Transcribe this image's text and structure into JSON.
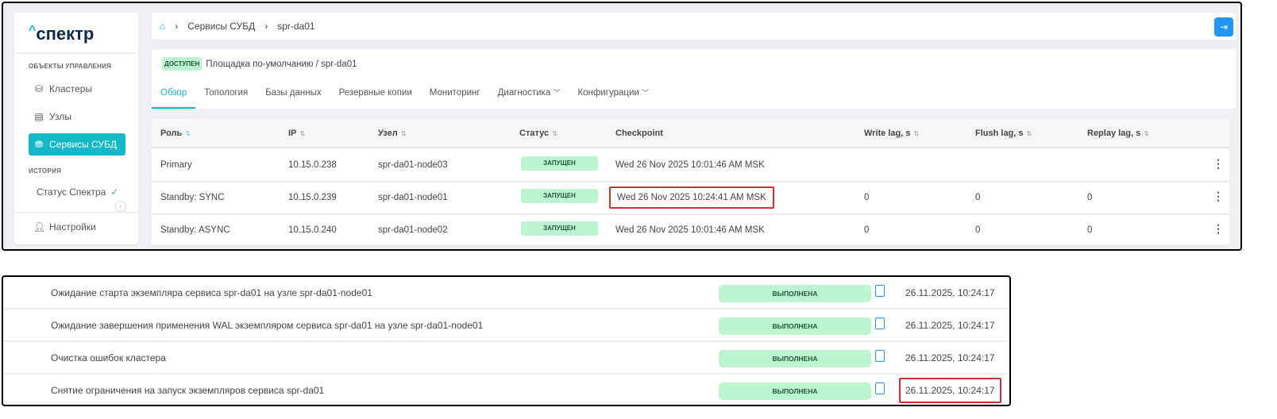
{
  "sidebar": {
    "logo": "спектр",
    "section_objects": "ОБЪЕКТЫ УПРАВЛЕНИЯ",
    "items": [
      {
        "label": "Кластеры",
        "icon": "cluster-icon"
      },
      {
        "label": "Узлы",
        "icon": "server-icon"
      },
      {
        "label": "Сервисы СУБД",
        "icon": "database-icon",
        "active": true
      }
    ],
    "section_history": "ИСТОРИЯ",
    "status": "Статус Спектра",
    "settings": "Настройки"
  },
  "breadcrumb": {
    "items": [
      "Сервисы СУБД",
      "spr-da01"
    ]
  },
  "header": {
    "status_badge": "ДОСТУПЕН",
    "path": "Площадка по-умолчанию /  spr-da01"
  },
  "tabs": [
    "Обзор",
    "Топология",
    "Базы данных",
    "Резервные копии",
    "Мониторинг",
    "Диагностика",
    "Конфигурации"
  ],
  "table": {
    "columns": [
      "Роль",
      "IP",
      "Узел",
      "Статус",
      "Checkpoint",
      "Write lag, s",
      "Flush lag, s",
      "Replay lag, s"
    ],
    "rows": [
      {
        "role": "Primary",
        "ip": "10.15.0.238",
        "node": "spr-da01-node03",
        "status": "ЗАПУЩЕН",
        "checkpoint": "Wed 26 Nov 2025 10:01:46 AM MSK",
        "write": "",
        "flush": "",
        "replay": ""
      },
      {
        "role": "Standby: SYNC",
        "ip": "10.15.0.239",
        "node": "spr-da01-node01",
        "status": "ЗАПУЩЕН",
        "checkpoint": "Wed 26 Nov 2025 10:24:41 AM MSK",
        "write": "0",
        "flush": "0",
        "replay": "0"
      },
      {
        "role": "Standby: ASYNC",
        "ip": "10.15.0.240",
        "node": "spr-da01-node02",
        "status": "ЗАПУЩЕН",
        "checkpoint": "Wed 26 Nov 2025 10:01:46 AM MSK",
        "write": "0",
        "flush": "0",
        "replay": "0"
      }
    ]
  },
  "tasks": [
    {
      "text": "Ожидание старта экземпляра сервиса spr-da01 на узле spr-da01-node01",
      "status": "ВЫПОЛНЕНА",
      "date": "26.11.2025, 10:24:17"
    },
    {
      "text": "Ожидание завершения применения WAL экземпляром сервиса spr-da01 на узле spr-da01-node01",
      "status": "ВЫПОЛНЕНА",
      "date": "26.11.2025, 10:24:17"
    },
    {
      "text": "Очистка ошибок кластера",
      "status": "ВЫПОЛНЕНА",
      "date": "26.11.2025, 10:24:17"
    },
    {
      "text": "Снятие ограничения на запуск экземпляров сервиса spr-da01",
      "status": "ВЫПОЛНЕНА",
      "date": "26.11.2025, 10:24:17"
    }
  ],
  "colors": {
    "accent": "#14b8c6",
    "primary_button": "#2196f3",
    "success_bg": "#bdf5d0",
    "highlight": "#d32f2f"
  }
}
